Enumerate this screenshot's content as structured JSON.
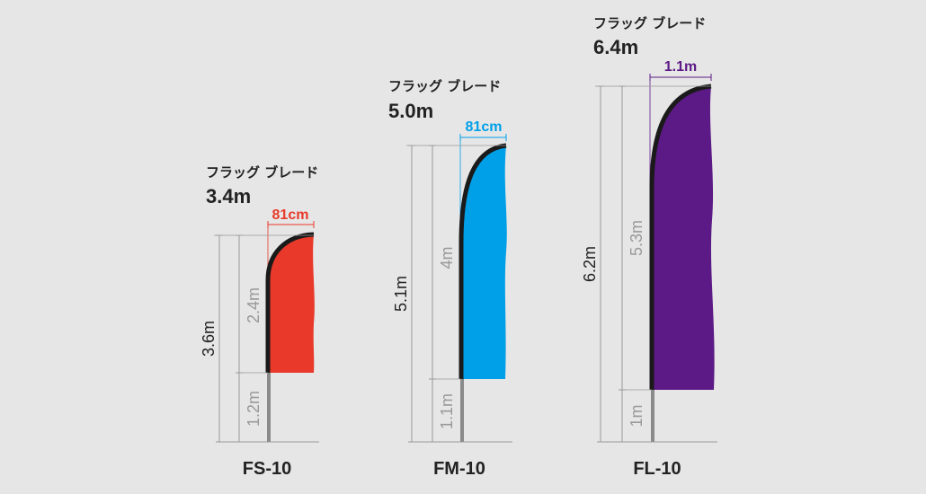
{
  "flags": [
    {
      "title": "フラッグ ブレード",
      "length": "3.4m",
      "width": "81cm",
      "total_height": "3.6m",
      "blade_height": "2.4m",
      "pole_height": "1.2m",
      "model": "FS-10",
      "color": "#e8392a"
    },
    {
      "title": "フラッグ ブレード",
      "length": "5.0m",
      "width": "81cm",
      "total_height": "5.1m",
      "blade_height": "4m",
      "pole_height": "1.1m",
      "model": "FM-10",
      "color": "#00a0e9"
    },
    {
      "title": "フラッグ ブレード",
      "length": "6.4m",
      "width": "1.1m",
      "total_height": "6.2m",
      "blade_height": "5.3m",
      "pole_height": "1m",
      "model": "FL-10",
      "color": "#5c1a86"
    }
  ]
}
